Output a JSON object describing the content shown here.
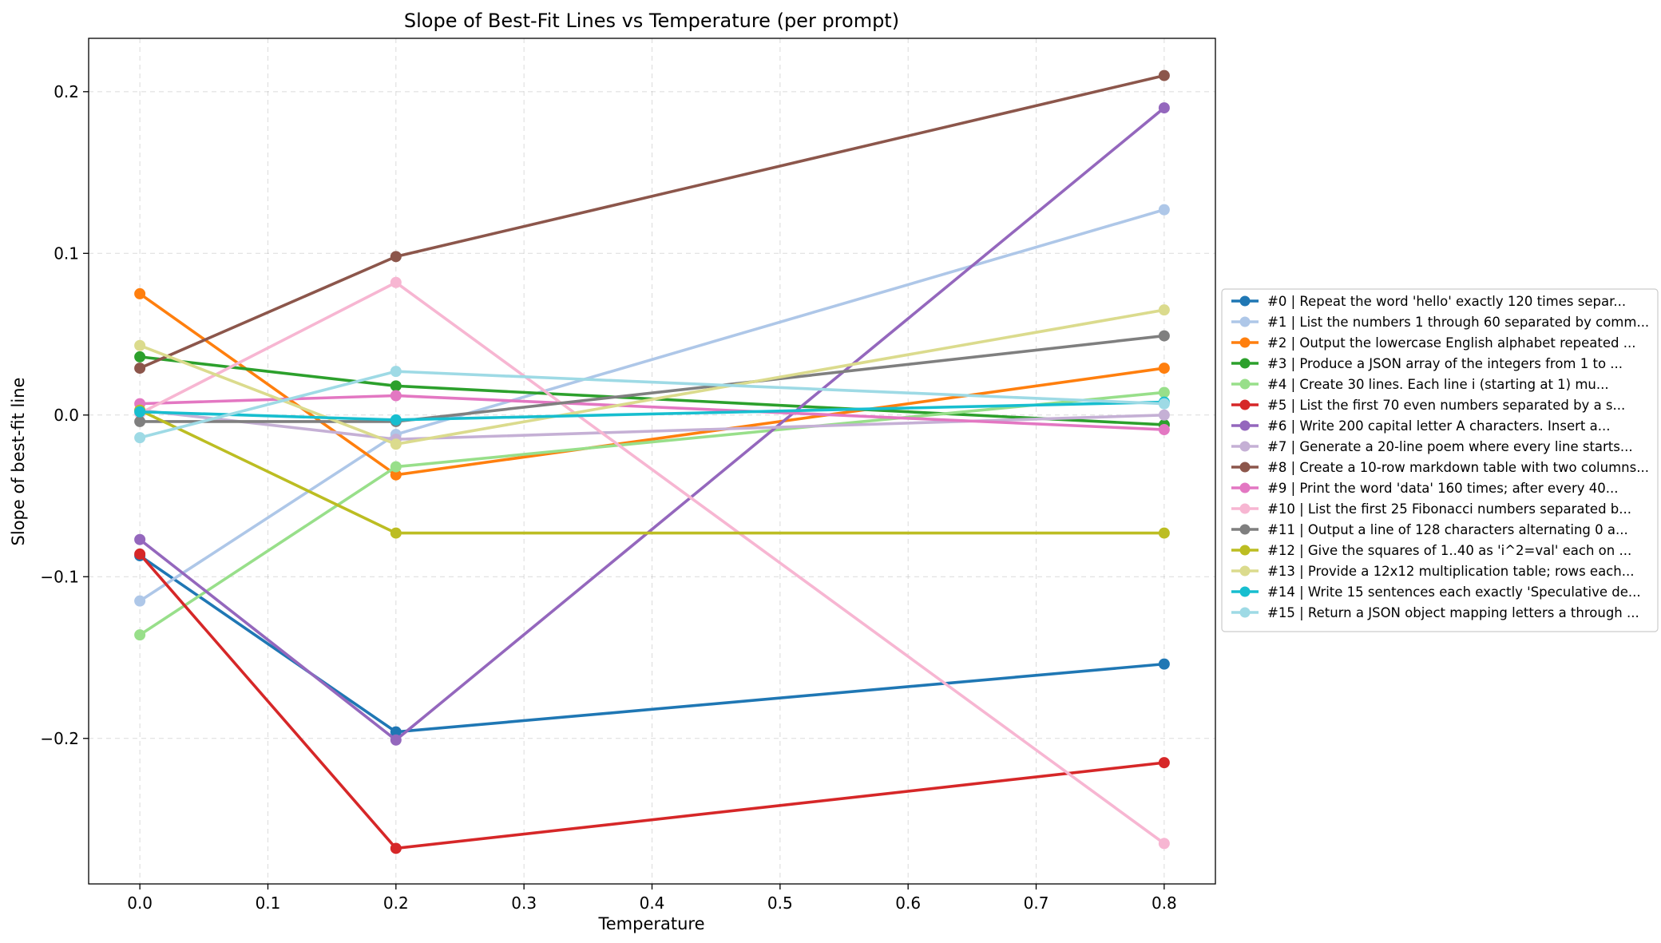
{
  "chart_data": {
    "type": "line",
    "title": "Slope of Best-Fit Lines vs Temperature (per prompt)",
    "xlabel": "Temperature",
    "ylabel": "Slope of best-fit line",
    "xlim": [
      -0.04,
      0.84
    ],
    "ylim": [
      -0.29,
      0.233
    ],
    "xticks": [
      0.0,
      0.1,
      0.2,
      0.3,
      0.4,
      0.5,
      0.6,
      0.7,
      0.8
    ],
    "xtick_labels": [
      "0.0",
      "0.1",
      "0.2",
      "0.3",
      "0.4",
      "0.5",
      "0.6",
      "0.7",
      "0.8"
    ],
    "yticks": [
      -0.2,
      -0.1,
      0.0,
      0.1,
      0.2
    ],
    "ytick_labels": [
      "−0.2",
      "−0.1",
      "0.0",
      "0.1",
      "0.2"
    ],
    "grid": true,
    "legend_position": "center-right-outside",
    "x": [
      0.0,
      0.2,
      0.8
    ],
    "series": [
      {
        "name": "#0 | Repeat the word 'hello' exactly 120 times separ...",
        "color": "#1f77b4",
        "values": [
          -0.087,
          -0.196,
          -0.154
        ]
      },
      {
        "name": "#1 | List the numbers 1 through 60 separated by comm...",
        "color": "#aec7e8",
        "values": [
          -0.115,
          -0.012,
          0.127
        ]
      },
      {
        "name": "#2 | Output the lowercase English alphabet repeated ...",
        "color": "#ff7f0e",
        "values": [
          0.075,
          -0.037,
          0.029
        ]
      },
      {
        "name": "#3 | Produce a JSON array of the integers from 1 to ...",
        "color": "#2ca02c",
        "values": [
          0.036,
          0.018,
          -0.006
        ]
      },
      {
        "name": "#4 | Create 30 lines. Each line i (starting at 1) mu...",
        "color": "#98df8a",
        "values": [
          -0.136,
          -0.032,
          0.014
        ]
      },
      {
        "name": "#5 | List the first 70 even numbers separated by a s...",
        "color": "#d62728",
        "values": [
          -0.086,
          -0.268,
          -0.215
        ]
      },
      {
        "name": "#6 | Write 200 capital letter A characters. Insert a...",
        "color": "#9467bd",
        "values": [
          -0.077,
          -0.201,
          0.19
        ]
      },
      {
        "name": "#7 | Generate a 20-line poem where every line starts...",
        "color": "#c5b0d5",
        "values": [
          0.003,
          -0.015,
          0.0
        ]
      },
      {
        "name": "#8 | Create a 10-row markdown table with two columns...",
        "color": "#8c564b",
        "values": [
          0.029,
          0.098,
          0.21
        ]
      },
      {
        "name": "#9 | Print the word 'data' 160 times; after every 40...",
        "color": "#e377c2",
        "values": [
          0.007,
          0.012,
          -0.009
        ]
      },
      {
        "name": "#10 | List the first 25 Fibonacci numbers separated b...",
        "color": "#f7b6d2",
        "values": [
          0.001,
          0.082,
          -0.265
        ]
      },
      {
        "name": "#11 | Output a line of 128 characters alternating 0 a...",
        "color": "#7f7f7f",
        "values": [
          -0.004,
          -0.004,
          0.049
        ]
      },
      {
        "name": "#12 | Give the squares of 1..40 as 'i^2=val' each on ...",
        "color": "#bcbd22",
        "values": [
          0.003,
          -0.073,
          -0.073
        ]
      },
      {
        "name": "#13 | Provide a 12x12 multiplication table; rows each...",
        "color": "#dbdb8d",
        "values": [
          0.043,
          -0.018,
          0.065
        ]
      },
      {
        "name": "#14 | Write 15 sentences each exactly 'Speculative de...",
        "color": "#17becf",
        "values": [
          0.002,
          -0.003,
          0.008
        ]
      },
      {
        "name": "#15 | Return a JSON object mapping letters a through ...",
        "color": "#9edae5",
        "values": [
          -0.014,
          0.027,
          0.007
        ]
      }
    ]
  }
}
